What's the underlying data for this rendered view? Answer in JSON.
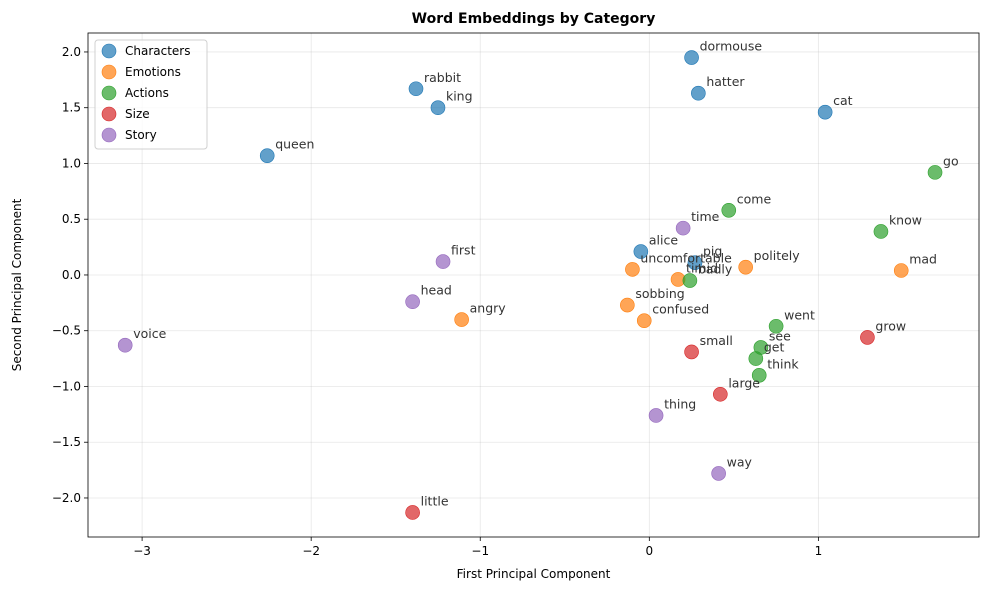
{
  "chart_data": {
    "type": "scatter",
    "title": "Word Embeddings by Category",
    "xlabel": "First Principal Component",
    "ylabel": "Second Principal Component",
    "xlim": [
      -3.32,
      1.95
    ],
    "ylim": [
      -2.35,
      2.17
    ],
    "xticks": [
      -3,
      -2,
      -1,
      0,
      1
    ],
    "xtick_labels": [
      "−3",
      "−2",
      "−1",
      "0",
      "1"
    ],
    "yticks": [
      -2.0,
      -1.5,
      -1.0,
      -0.5,
      0.0,
      0.5,
      1.0,
      1.5,
      2.0
    ],
    "ytick_labels": [
      "−2.0",
      "−1.5",
      "−1.0",
      "−0.5",
      "0.0",
      "0.5",
      "1.0",
      "1.5",
      "2.0"
    ],
    "grid": true,
    "legend_position": "top-left",
    "series": [
      {
        "name": "Characters",
        "color": "#1f77b4",
        "points": [
          {
            "label": "dormouse",
            "x": 0.25,
            "y": 1.95
          },
          {
            "label": "rabbit",
            "x": -1.38,
            "y": 1.67
          },
          {
            "label": "hatter",
            "x": 0.29,
            "y": 1.63
          },
          {
            "label": "king",
            "x": -1.25,
            "y": 1.5
          },
          {
            "label": "cat",
            "x": 1.04,
            "y": 1.46
          },
          {
            "label": "queen",
            "x": -2.26,
            "y": 1.07
          },
          {
            "label": "alice",
            "x": -0.05,
            "y": 0.21
          },
          {
            "label": "pig",
            "x": 0.27,
            "y": 0.11
          }
        ]
      },
      {
        "name": "Emotions",
        "color": "#ff7f0e",
        "points": [
          {
            "label": "uncomfortable",
            "x": -0.1,
            "y": 0.05
          },
          {
            "label": "timid",
            "x": 0.17,
            "y": -0.04
          },
          {
            "label": "politely",
            "x": 0.57,
            "y": 0.07
          },
          {
            "label": "mad",
            "x": 1.49,
            "y": 0.04
          },
          {
            "label": "sobbing",
            "x": -0.13,
            "y": -0.27
          },
          {
            "label": "angry",
            "x": -1.11,
            "y": -0.4
          },
          {
            "label": "confused",
            "x": -0.03,
            "y": -0.41
          }
        ]
      },
      {
        "name": "Actions",
        "color": "#2ca02c",
        "points": [
          {
            "label": "go",
            "x": 1.69,
            "y": 0.92
          },
          {
            "label": "come",
            "x": 0.47,
            "y": 0.58
          },
          {
            "label": "know",
            "x": 1.37,
            "y": 0.39
          },
          {
            "label": "badly",
            "x": 0.24,
            "y": -0.05
          },
          {
            "label": "went",
            "x": 0.75,
            "y": -0.46
          },
          {
            "label": "see",
            "x": 0.66,
            "y": -0.65
          },
          {
            "label": "get",
            "x": 0.63,
            "y": -0.75
          },
          {
            "label": "think",
            "x": 0.65,
            "y": -0.9
          }
        ]
      },
      {
        "name": "Size",
        "color": "#d62728",
        "points": [
          {
            "label": "grow",
            "x": 1.29,
            "y": -0.56
          },
          {
            "label": "small",
            "x": 0.25,
            "y": -0.69
          },
          {
            "label": "large",
            "x": 0.42,
            "y": -1.07
          },
          {
            "label": "little",
            "x": -1.4,
            "y": -2.13
          }
        ]
      },
      {
        "name": "Story",
        "color": "#9467bd",
        "points": [
          {
            "label": "time",
            "x": 0.2,
            "y": 0.42
          },
          {
            "label": "first",
            "x": -1.22,
            "y": 0.12
          },
          {
            "label": "head",
            "x": -1.4,
            "y": -0.24
          },
          {
            "label": "voice",
            "x": -3.1,
            "y": -0.63
          },
          {
            "label": "thing",
            "x": 0.04,
            "y": -1.26
          },
          {
            "label": "way",
            "x": 0.41,
            "y": -1.78
          }
        ]
      }
    ]
  }
}
